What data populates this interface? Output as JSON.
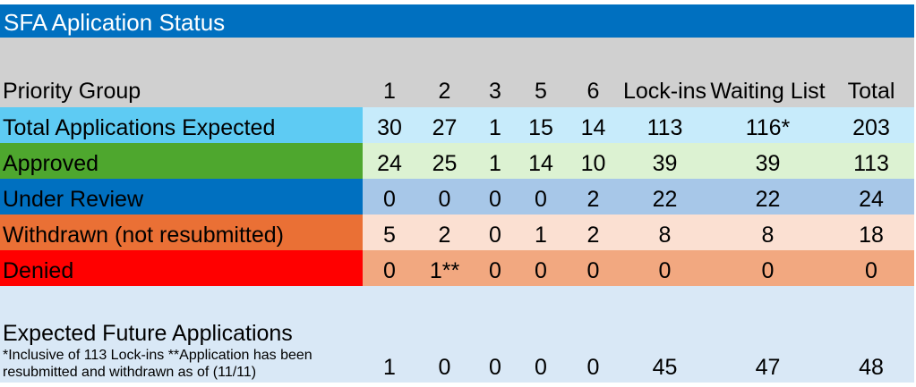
{
  "title": "SFA Aplication Status",
  "header": {
    "label": "Priority Group",
    "columns": [
      "1",
      "2",
      "3",
      "5",
      "6",
      "Lock-ins",
      "Waiting List",
      "Total"
    ]
  },
  "rows": [
    {
      "label": "Total Applications Expected",
      "label_color": "#5ecbf3",
      "cell_color": "#c7ebfb",
      "values": [
        "30",
        "27",
        "1",
        "15",
        "14",
        "113",
        "116*",
        "203"
      ]
    },
    {
      "label": "Approved",
      "label_color": "#4ea72e",
      "cell_color": "#dcf2d2",
      "values": [
        "24",
        "25",
        "1",
        "14",
        "10",
        "39",
        "39",
        "113"
      ]
    },
    {
      "label": "Under Review",
      "label_color": "#0070c0",
      "cell_color": "#a7c7e8",
      "values": [
        "0",
        "0",
        "0",
        "0",
        "2",
        "22",
        "22",
        "24"
      ]
    },
    {
      "label": "Withdrawn (not resubmitted)",
      "label_color": "#ea7035",
      "cell_color": "#fbe0d2",
      "values": [
        "5",
        "2",
        "0",
        "1",
        "2",
        "8",
        "8",
        "18"
      ]
    },
    {
      "label": "Denied",
      "label_color": "#ff0000",
      "cell_color": "#f2a880",
      "values": [
        "0",
        "1**",
        "0",
        "0",
        "0",
        "0",
        "0",
        "0"
      ]
    }
  ],
  "future": {
    "label": "Expected Future Applications",
    "note": "*Inclusive of 113 Lock-ins            **Application has been resubmitted and withdrawn as of (11/11)",
    "values": [
      "1",
      "0",
      "0",
      "0",
      "0",
      "45",
      "47",
      "48"
    ]
  }
}
